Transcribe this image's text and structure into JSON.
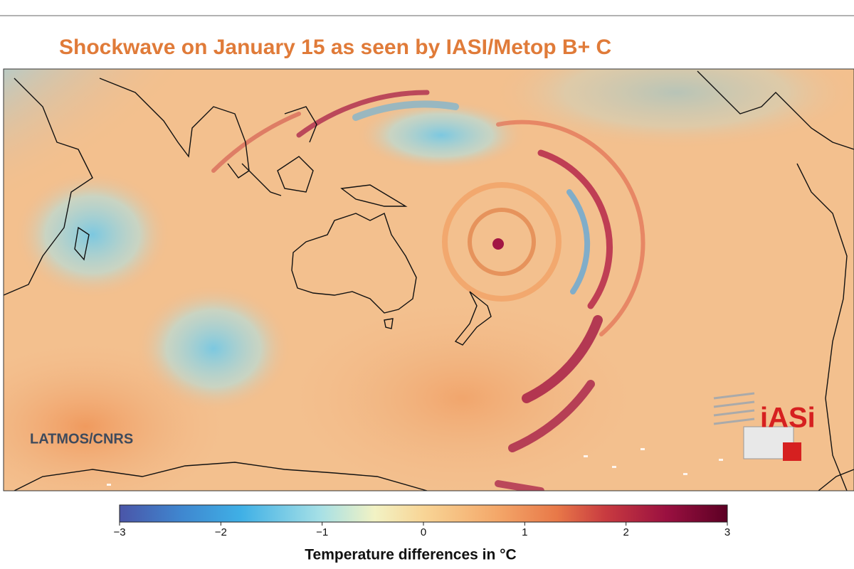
{
  "title": "Shockwave on January 15 as seen by IASI/Metop B+ C",
  "credit": "LATMOS/CNRS",
  "logo": "iASi",
  "colorbar": {
    "label": "Temperature differences in °C",
    "lim": [
      -3,
      3
    ],
    "ticks": [
      {
        "value": -3,
        "label": "−3"
      },
      {
        "value": -2,
        "label": "−2"
      },
      {
        "value": -1,
        "label": "−1"
      },
      0,
      1,
      2,
      3
    ]
  }
}
